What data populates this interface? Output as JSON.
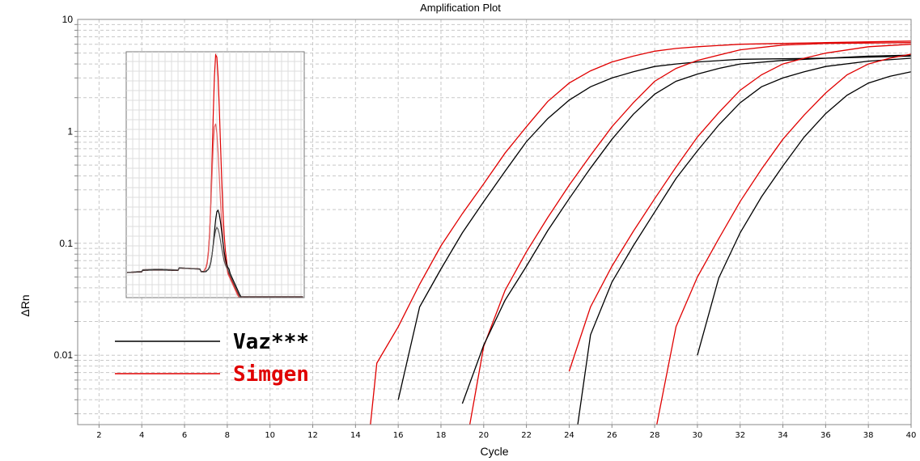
{
  "chart_data": {
    "type": "line",
    "title": "Amplification Plot",
    "xlabel": "Cycle",
    "ylabel": "ΔRn",
    "xlim": [
      1,
      40
    ],
    "ylim": [
      0.0024,
      10
    ],
    "yscale": "log",
    "grid": true,
    "xticks": [
      2,
      4,
      6,
      8,
      10,
      12,
      14,
      16,
      18,
      20,
      22,
      24,
      26,
      28,
      30,
      32,
      34,
      36,
      38,
      40
    ],
    "yticks": [
      {
        "v": 10,
        "label": "10"
      },
      {
        "v": 1,
        "label": "1"
      },
      {
        "v": 0.1,
        "label": "0.1"
      },
      {
        "v": 0.01,
        "label": "0.01"
      }
    ],
    "legend": {
      "placement": "bottom-left",
      "entries": [
        {
          "label": "Vaz***",
          "color": "#000000"
        },
        {
          "label": "Simgen",
          "color": "#e00000"
        }
      ]
    },
    "series": [
      {
        "group": "Simgen",
        "color": "#e00000",
        "points": [
          [
            14.7,
            0.0024
          ],
          [
            15,
            0.0085
          ],
          [
            16,
            0.018
          ],
          [
            17,
            0.043
          ],
          [
            18,
            0.095
          ],
          [
            19,
            0.184
          ],
          [
            20,
            0.34
          ],
          [
            21,
            0.64
          ],
          [
            22,
            1.1
          ],
          [
            23,
            1.85
          ],
          [
            24,
            2.7
          ],
          [
            25,
            3.47
          ],
          [
            26,
            4.17
          ],
          [
            27,
            4.7
          ],
          [
            28,
            5.2
          ],
          [
            29,
            5.5
          ],
          [
            30,
            5.7
          ],
          [
            32,
            6.0
          ],
          [
            34,
            6.1
          ],
          [
            36,
            6.2
          ],
          [
            40,
            6.4
          ]
        ]
      },
      {
        "group": "Vaz***",
        "color": "#000000",
        "points": [
          [
            16,
            0.004
          ],
          [
            17,
            0.027
          ],
          [
            18,
            0.059
          ],
          [
            19,
            0.124
          ],
          [
            20,
            0.236
          ],
          [
            21,
            0.44
          ],
          [
            22,
            0.81
          ],
          [
            23,
            1.3
          ],
          [
            24,
            1.9
          ],
          [
            25,
            2.5
          ],
          [
            26,
            3.0
          ],
          [
            27,
            3.4
          ],
          [
            28,
            3.8
          ],
          [
            29,
            4.0
          ],
          [
            30,
            4.17
          ],
          [
            32,
            4.4
          ],
          [
            36,
            4.5
          ],
          [
            40,
            4.7
          ]
        ]
      },
      {
        "group": "Simgen",
        "color": "#e00000",
        "points": [
          [
            19.35,
            0.0024
          ],
          [
            20,
            0.012
          ],
          [
            21,
            0.038
          ],
          [
            22,
            0.084
          ],
          [
            23,
            0.17
          ],
          [
            24,
            0.33
          ],
          [
            25,
            0.61
          ],
          [
            26,
            1.1
          ],
          [
            27,
            1.8
          ],
          [
            28,
            2.8
          ],
          [
            29,
            3.65
          ],
          [
            30,
            4.3
          ],
          [
            32,
            5.35
          ],
          [
            34,
            5.9
          ],
          [
            36,
            6.1
          ],
          [
            40,
            6.2
          ]
        ]
      },
      {
        "group": "Vaz***",
        "color": "#000000",
        "points": [
          [
            19,
            0.0037
          ],
          [
            20,
            0.0123
          ],
          [
            21,
            0.031
          ],
          [
            22,
            0.0625
          ],
          [
            23,
            0.13
          ],
          [
            24,
            0.25
          ],
          [
            25,
            0.47
          ],
          [
            26,
            0.85
          ],
          [
            27,
            1.42
          ],
          [
            28,
            2.15
          ],
          [
            29,
            2.8
          ],
          [
            30,
            3.25
          ],
          [
            31,
            3.65
          ],
          [
            32,
            4.0
          ],
          [
            34,
            4.3
          ],
          [
            36,
            4.5
          ],
          [
            38,
            4.7
          ],
          [
            40,
            4.8
          ]
        ]
      },
      {
        "group": "Simgen",
        "color": "#e00000",
        "points": [
          [
            24,
            0.0072
          ],
          [
            25,
            0.027
          ],
          [
            26,
            0.0625
          ],
          [
            27,
            0.128
          ],
          [
            28,
            0.25
          ],
          [
            29,
            0.48
          ],
          [
            30,
            0.89
          ],
          [
            31,
            1.47
          ],
          [
            32,
            2.33
          ],
          [
            33,
            3.2
          ],
          [
            34,
            4.0
          ],
          [
            35,
            4.5
          ],
          [
            36,
            5.0
          ],
          [
            38,
            5.7
          ],
          [
            40,
            6.0
          ]
        ]
      },
      {
        "group": "Vaz***",
        "color": "#000000",
        "points": [
          [
            24.4,
            0.0024
          ],
          [
            25,
            0.0152
          ],
          [
            26,
            0.045
          ],
          [
            27,
            0.095
          ],
          [
            28,
            0.19
          ],
          [
            29,
            0.38
          ],
          [
            30,
            0.67
          ],
          [
            31,
            1.14
          ],
          [
            32,
            1.8
          ],
          [
            33,
            2.5
          ],
          [
            34,
            3.0
          ],
          [
            35,
            3.4
          ],
          [
            36,
            3.8
          ],
          [
            38,
            4.24
          ],
          [
            40,
            4.5
          ]
        ]
      },
      {
        "group": "Simgen",
        "color": "#e00000",
        "points": [
          [
            28.1,
            0.0024
          ],
          [
            29,
            0.018
          ],
          [
            30,
            0.05
          ],
          [
            31,
            0.11
          ],
          [
            32,
            0.236
          ],
          [
            33,
            0.46
          ],
          [
            34,
            0.85
          ],
          [
            35,
            1.4
          ],
          [
            36,
            2.2
          ],
          [
            37,
            3.2
          ],
          [
            38,
            4.0
          ],
          [
            39,
            4.5
          ],
          [
            40,
            4.9
          ]
        ]
      },
      {
        "group": "Vaz***",
        "color": "#000000",
        "points": [
          [
            30,
            0.01
          ],
          [
            31,
            0.049
          ],
          [
            32,
            0.124
          ],
          [
            33,
            0.26
          ],
          [
            34,
            0.49
          ],
          [
            35,
            0.89
          ],
          [
            36,
            1.44
          ],
          [
            37,
            2.1
          ],
          [
            38,
            2.7
          ],
          [
            39,
            3.1
          ],
          [
            40,
            3.4
          ]
        ]
      }
    ],
    "inset": {
      "type": "line",
      "description_of_axes": "",
      "series": [
        {
          "color": "#e00000",
          "peak": 1.0,
          "baseline": 0.06
        },
        {
          "color": "#e06060",
          "peak": 0.68,
          "baseline": 0.065
        },
        {
          "color": "#000000",
          "peak": 0.28,
          "baseline": 0.055
        },
        {
          "color": "#555555",
          "peak": 0.2,
          "baseline": 0.058
        }
      ]
    }
  }
}
